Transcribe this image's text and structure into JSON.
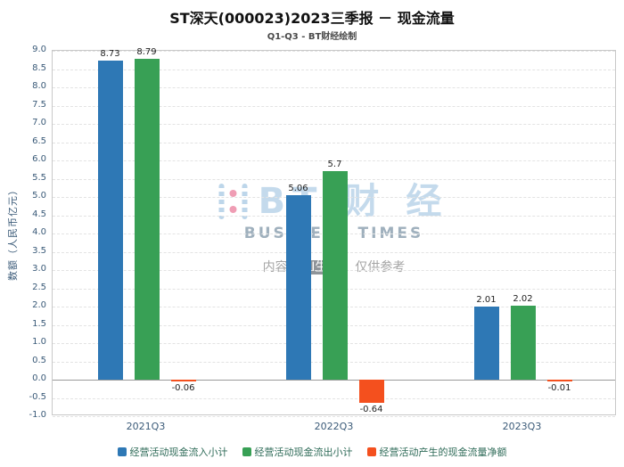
{
  "header": {
    "title": "ST深天(000023)2023三季报 － 现金流量",
    "subtitle": "Q1-Q3 - BT财经绘制"
  },
  "watermark": {
    "logo": "BT",
    "logo_cn": "财 经",
    "brand": "BUSINESS TIMES",
    "note_prefix": "内容由",
    "note_badge": "AI生成",
    "note_suffix": "，仅供参考"
  },
  "chart_data": {
    "type": "bar",
    "title": "ST深天(000023)2023三季报 － 现金流量",
    "subtitle": "Q1-Q3 - BT财经绘制",
    "categories": [
      "2021Q3",
      "2022Q3",
      "2023Q3"
    ],
    "series": [
      {
        "name": "经营活动现金流入小计",
        "color": "#2e78b5",
        "values": [
          8.73,
          5.06,
          2.01
        ]
      },
      {
        "name": "经营活动现金流出小计",
        "color": "#38a055",
        "values": [
          8.79,
          5.7,
          2.02
        ]
      },
      {
        "name": "经营活动产生的现金流量净额",
        "color": "#f4501e",
        "values": [
          -0.06,
          -0.64,
          -0.01
        ]
      }
    ],
    "xlabel": "",
    "ylabel": "数额（人民币亿元）",
    "ylim": [
      -1.0,
      9.0
    ],
    "ytick_step": 0.5,
    "grid": true,
    "legend_position": "bottom"
  }
}
